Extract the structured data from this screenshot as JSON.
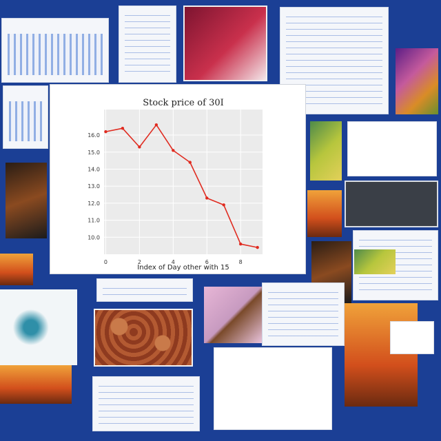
{
  "chart_data": {
    "type": "line",
    "title": "Stock price of 30I",
    "xlabel": "Index of Day other with 15",
    "ylabel": "",
    "x": [
      0,
      1,
      2,
      3,
      4,
      5,
      6,
      7,
      8,
      9
    ],
    "y": [
      16.2,
      16.4,
      15.3,
      16.6,
      15.1,
      14.4,
      12.3,
      11.9,
      9.6,
      9.4
    ],
    "xlim": [
      -0.1,
      9.3
    ],
    "ylim": [
      9.0,
      17.5
    ],
    "x_tick_labels": [
      "0",
      "2",
      "4",
      "6",
      "8"
    ],
    "x_tick_positions": [
      0,
      2,
      4,
      6,
      8
    ],
    "y_tick_labels": [
      "16.0",
      "15.0",
      "14.0",
      "13.0",
      "12.0",
      "11.0",
      "10.0"
    ],
    "y_tick_positions": [
      16,
      15,
      14,
      13,
      12,
      11,
      10
    ],
    "grid": true,
    "colors": {
      "line": "#e02b20",
      "plot_bg": "#ebebeb",
      "grid": "#ffffff",
      "page_bg": "#1b3f95"
    }
  }
}
